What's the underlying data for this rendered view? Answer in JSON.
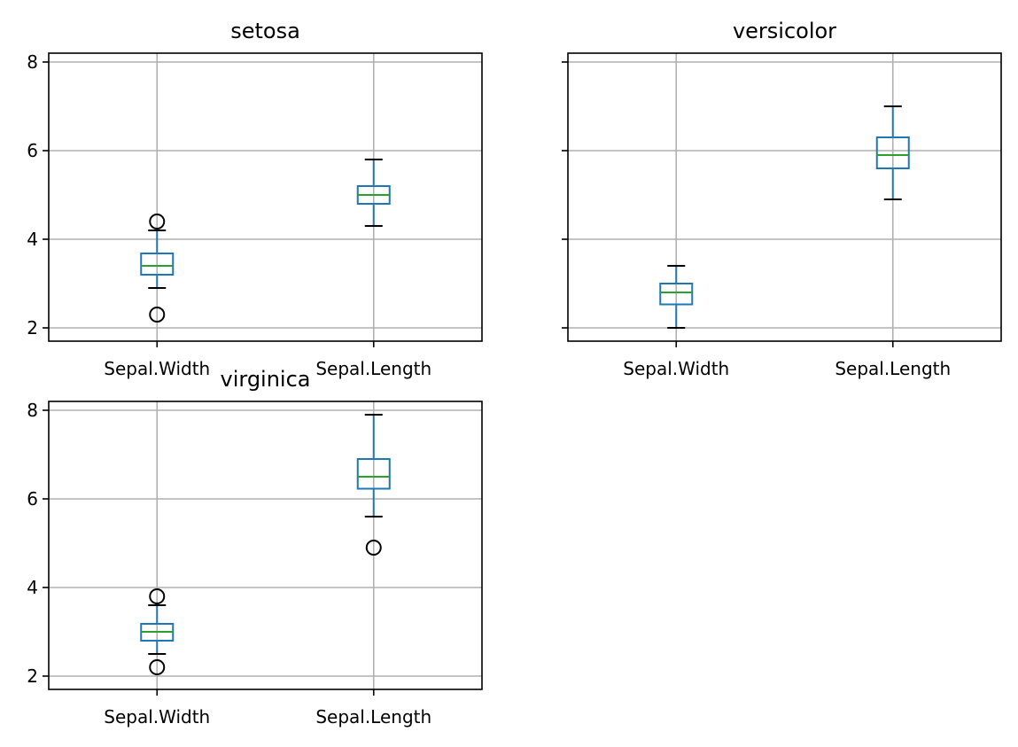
{
  "chart_data": [
    {
      "type": "box",
      "title": "setosa",
      "categories": [
        "Sepal.Width",
        "Sepal.Length"
      ],
      "ylim": [
        1.7,
        8.2
      ],
      "yticks": [
        2,
        4,
        6,
        8
      ],
      "grid": true,
      "show_ytick_labels": true,
      "boxes": [
        {
          "name": "Sepal.Width",
          "whisker_low": 2.9,
          "q1": 3.2,
          "median": 3.4,
          "q3": 3.68,
          "whisker_high": 4.2,
          "outliers": [
            4.4,
            2.3
          ]
        },
        {
          "name": "Sepal.Length",
          "whisker_low": 4.3,
          "q1": 4.8,
          "median": 5.0,
          "q3": 5.2,
          "whisker_high": 5.8,
          "outliers": []
        }
      ]
    },
    {
      "type": "box",
      "title": "versicolor",
      "categories": [
        "Sepal.Width",
        "Sepal.Length"
      ],
      "ylim": [
        1.7,
        8.2
      ],
      "yticks": [
        2,
        4,
        6,
        8
      ],
      "grid": true,
      "show_ytick_labels": false,
      "boxes": [
        {
          "name": "Sepal.Width",
          "whisker_low": 2.0,
          "q1": 2.53,
          "median": 2.8,
          "q3": 3.0,
          "whisker_high": 3.4,
          "outliers": []
        },
        {
          "name": "Sepal.Length",
          "whisker_low": 4.9,
          "q1": 5.6,
          "median": 5.9,
          "q3": 6.3,
          "whisker_high": 7.0,
          "outliers": []
        }
      ]
    },
    {
      "type": "box",
      "title": "virginica",
      "categories": [
        "Sepal.Width",
        "Sepal.Length"
      ],
      "ylim": [
        1.7,
        8.2
      ],
      "yticks": [
        2,
        4,
        6,
        8
      ],
      "grid": true,
      "show_ytick_labels": true,
      "boxes": [
        {
          "name": "Sepal.Width",
          "whisker_low": 2.5,
          "q1": 2.8,
          "median": 3.0,
          "q3": 3.18,
          "whisker_high": 3.6,
          "outliers": [
            3.8,
            2.2
          ]
        },
        {
          "name": "Sepal.Length",
          "whisker_low": 5.6,
          "q1": 6.23,
          "median": 6.5,
          "q3": 6.9,
          "whisker_high": 7.9,
          "outliers": [
            4.9
          ]
        }
      ]
    }
  ],
  "colors": {
    "box": "#1f77b4",
    "median": "#2ca02c",
    "grid": "#b0b0b0",
    "axes": "#000000"
  }
}
